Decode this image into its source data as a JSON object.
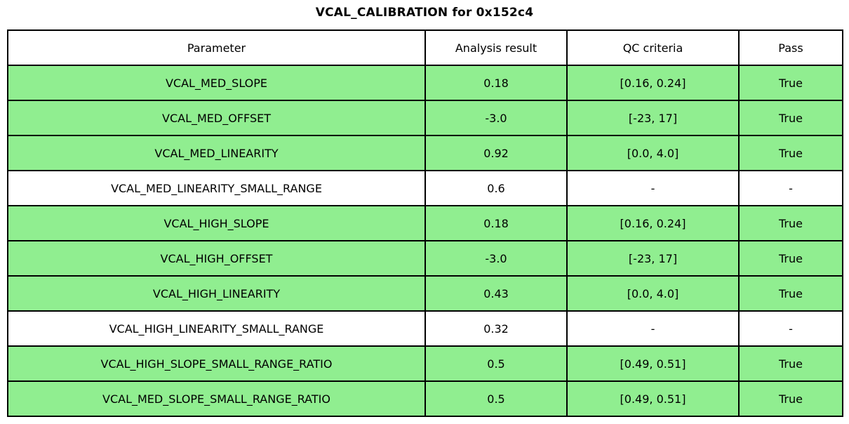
{
  "title": "VCAL_CALIBRATION for 0x152c4",
  "colors": {
    "pass_row_bg": "#90EE90",
    "neutral_row_bg": "#FFFFFF",
    "border": "#000000"
  },
  "table": {
    "headers": [
      "Parameter",
      "Analysis result",
      "QC criteria",
      "Pass"
    ],
    "rows": [
      {
        "parameter": "VCAL_MED_SLOPE",
        "analysis_result": "0.18",
        "qc_criteria": "[0.16, 0.24]",
        "pass": "True",
        "highlight": true
      },
      {
        "parameter": "VCAL_MED_OFFSET",
        "analysis_result": "-3.0",
        "qc_criteria": "[-23, 17]",
        "pass": "True",
        "highlight": true
      },
      {
        "parameter": "VCAL_MED_LINEARITY",
        "analysis_result": "0.92",
        "qc_criteria": "[0.0, 4.0]",
        "pass": "True",
        "highlight": true
      },
      {
        "parameter": "VCAL_MED_LINEARITY_SMALL_RANGE",
        "analysis_result": "0.6",
        "qc_criteria": "-",
        "pass": "-",
        "highlight": false
      },
      {
        "parameter": "VCAL_HIGH_SLOPE",
        "analysis_result": "0.18",
        "qc_criteria": "[0.16, 0.24]",
        "pass": "True",
        "highlight": true
      },
      {
        "parameter": "VCAL_HIGH_OFFSET",
        "analysis_result": "-3.0",
        "qc_criteria": "[-23, 17]",
        "pass": "True",
        "highlight": true
      },
      {
        "parameter": "VCAL_HIGH_LINEARITY",
        "analysis_result": "0.43",
        "qc_criteria": "[0.0, 4.0]",
        "pass": "True",
        "highlight": true
      },
      {
        "parameter": "VCAL_HIGH_LINEARITY_SMALL_RANGE",
        "analysis_result": "0.32",
        "qc_criteria": "-",
        "pass": "-",
        "highlight": false
      },
      {
        "parameter": "VCAL_HIGH_SLOPE_SMALL_RANGE_RATIO",
        "analysis_result": "0.5",
        "qc_criteria": "[0.49, 0.51]",
        "pass": "True",
        "highlight": true
      },
      {
        "parameter": "VCAL_MED_SLOPE_SMALL_RANGE_RATIO",
        "analysis_result": "0.5",
        "qc_criteria": "[0.49, 0.51]",
        "pass": "True",
        "highlight": true
      }
    ]
  },
  "chart_data": {
    "type": "table",
    "title": "VCAL_CALIBRATION for 0x152c4",
    "columns": [
      "Parameter",
      "Analysis result",
      "QC criteria",
      "Pass"
    ],
    "rows": [
      [
        "VCAL_MED_SLOPE",
        0.18,
        "[0.16, 0.24]",
        "True"
      ],
      [
        "VCAL_MED_OFFSET",
        -3.0,
        "[-23, 17]",
        "True"
      ],
      [
        "VCAL_MED_LINEARITY",
        0.92,
        "[0.0, 4.0]",
        "True"
      ],
      [
        "VCAL_MED_LINEARITY_SMALL_RANGE",
        0.6,
        "-",
        "-"
      ],
      [
        "VCAL_HIGH_SLOPE",
        0.18,
        "[0.16, 0.24]",
        "True"
      ],
      [
        "VCAL_HIGH_OFFSET",
        -3.0,
        "[-23, 17]",
        "True"
      ],
      [
        "VCAL_HIGH_LINEARITY",
        0.43,
        "[0.0, 4.0]",
        "True"
      ],
      [
        "VCAL_HIGH_LINEARITY_SMALL_RANGE",
        0.32,
        "-",
        "-"
      ],
      [
        "VCAL_HIGH_SLOPE_SMALL_RANGE_RATIO",
        0.5,
        "[0.49, 0.51]",
        "True"
      ],
      [
        "VCAL_MED_SLOPE_SMALL_RANGE_RATIO",
        0.5,
        "[0.49, 0.51]",
        "True"
      ]
    ],
    "row_highlight_color": "#90EE90",
    "layout": "highlighted rows indicate QC pass; rows without criteria are white"
  }
}
